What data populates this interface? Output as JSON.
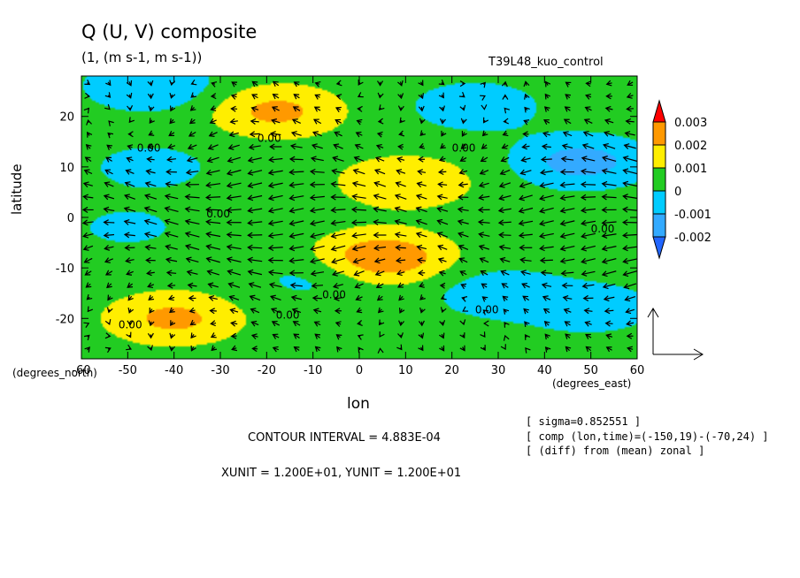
{
  "title": "Q (U, V) composite",
  "subtitle": "(1, (m s-1, m s-1))",
  "experiment": "T39L48_kuo_control",
  "chart_data": {
    "type": "heatmap",
    "xlabel": "lon",
    "ylabel": "latitude",
    "x_unit": "(degrees_east)",
    "y_unit": "(degrees_north)",
    "xlim": [
      -60,
      60
    ],
    "ylim": [
      -28,
      28
    ],
    "x_ticks": [
      "-60",
      "-50",
      "-40",
      "-30",
      "-20",
      "-10",
      "0",
      "10",
      "20",
      "30",
      "40",
      "50",
      "60"
    ],
    "y_ticks": [
      "20",
      "10",
      "0",
      "-10",
      "-20"
    ],
    "colorbar": {
      "levels": [
        "0.003",
        "0.002",
        "0.001",
        "0",
        "-0.001",
        "-0.002"
      ],
      "colors": [
        "#ff0000",
        "#ff9900",
        "#ffee00",
        "#22cc22",
        "#00ccff",
        "#33aaff",
        "#2266ff"
      ]
    },
    "contour_labels": [
      "0.00"
    ],
    "features": [
      {
        "lon": 10,
        "lat": 7,
        "value": 0.0015
      },
      {
        "lon": 5,
        "lat": -8,
        "value": 0.0025
      },
      {
        "lon": -40,
        "lat": -20,
        "value": 0.0018
      },
      {
        "lon": -18,
        "lat": 21,
        "value": 0.0018
      },
      {
        "lon": 48,
        "lat": 11,
        "value": -0.002
      },
      {
        "lon": -45,
        "lat": 10,
        "value": -0.0009
      },
      {
        "lon": 30,
        "lat": -15,
        "value": -0.0012
      },
      {
        "lon": 50,
        "lat": -18,
        "value": -0.0012
      },
      {
        "lon": -45,
        "lat": 26,
        "value": -0.0015
      },
      {
        "lon": -50,
        "lat": -2,
        "value": -0.0007
      },
      {
        "lon": -10,
        "lat": -12,
        "value": -0.0008
      },
      {
        "lon": 25,
        "lat": 22,
        "value": -0.0012
      }
    ],
    "vector_reference": "1"
  },
  "footer": {
    "contour_interval": "CONTOUR INTERVAL = 4.883E-04",
    "units": "XUNIT = 1.200E+01, YUNIT = 1.200E+01"
  },
  "notes": [
    "[ sigma=0.852551 ]",
    "[ comp (lon,time)=(-150,19)-(-70,24) ]",
    "[ (diff) from (mean) zonal ]"
  ]
}
